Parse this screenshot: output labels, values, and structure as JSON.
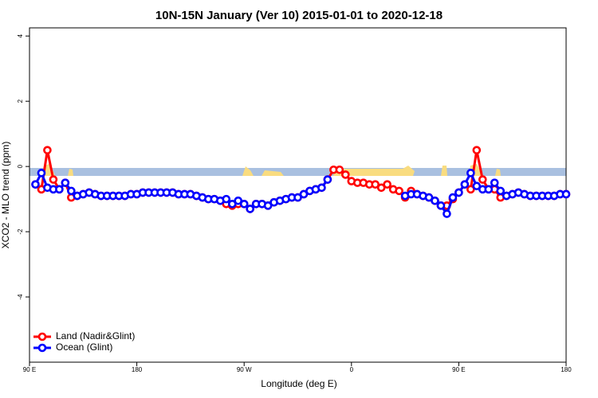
{
  "chart_data": {
    "type": "line",
    "title": "10N-15N January (Ver 10)   2015-01-01 to 2020-12-18",
    "xlabel": "Longitude (deg E)",
    "ylabel": "XCO2 - MLO trend (ppm)",
    "x": [
      95,
      100,
      105,
      110,
      115,
      120,
      125,
      130,
      135,
      140,
      145,
      150,
      155,
      160,
      165,
      170,
      175,
      180,
      185,
      190,
      195,
      200,
      205,
      210,
      215,
      220,
      225,
      230,
      235,
      240,
      245,
      250,
      255,
      260,
      265,
      270,
      275,
      280,
      285,
      290,
      295,
      300,
      305,
      310,
      315,
      320,
      325,
      330,
      335,
      340,
      345,
      350,
      355,
      360,
      365,
      370,
      375,
      380,
      385,
      390,
      395,
      400,
      405,
      410,
      415,
      420,
      425,
      430,
      435,
      440,
      445,
      450,
      455,
      460,
      465,
      470,
      475,
      480,
      485,
      490,
      495,
      500,
      505,
      510,
      515,
      520,
      525,
      530,
      535,
      540
    ],
    "series": [
      {
        "name": "Land (Nadir&Glint)",
        "color": "#ff0000",
        "values": [
          -0.55,
          -0.7,
          0.5,
          -0.4,
          -0.7,
          -0.5,
          -0.95,
          -0.9,
          -0.85,
          -0.8,
          -0.85,
          -0.9,
          -0.9,
          -0.9,
          -0.9,
          -0.9,
          -0.85,
          -0.85,
          -0.8,
          -0.8,
          -0.8,
          -0.8,
          -0.8,
          -0.8,
          -0.85,
          -0.85,
          -0.85,
          -0.9,
          -0.95,
          -1.0,
          -1.0,
          -1.05,
          -1.15,
          -1.2,
          -1.15,
          -1.15,
          -1.3,
          -1.15,
          -1.15,
          -1.2,
          -1.1,
          -1.05,
          -1.0,
          -0.95,
          -0.95,
          -0.85,
          -0.75,
          -0.7,
          -0.65,
          -0.4,
          -0.1,
          -0.1,
          -0.25,
          -0.45,
          -0.5,
          -0.5,
          -0.55,
          -0.55,
          -0.65,
          -0.55,
          -0.7,
          -0.75,
          -0.95,
          -0.75,
          -0.85,
          -0.9,
          -0.95,
          -1.05,
          -1.2,
          -1.2,
          -1.0,
          -0.8,
          -0.55,
          -0.7,
          0.5,
          -0.4,
          -0.7,
          -0.7,
          -0.95,
          -0.9,
          -0.85,
          -0.8,
          -0.85,
          -0.9,
          -0.9,
          -0.9,
          -0.9,
          -0.9,
          -0.85,
          -0.85
        ]
      },
      {
        "name": "Ocean (Glint)",
        "color": "#0000ff",
        "values": [
          -0.55,
          -0.2,
          -0.65,
          -0.7,
          -0.7,
          -0.5,
          -0.75,
          -0.9,
          -0.85,
          -0.8,
          -0.85,
          -0.9,
          -0.9,
          -0.9,
          -0.9,
          -0.9,
          -0.85,
          -0.85,
          -0.8,
          -0.8,
          -0.8,
          -0.8,
          -0.8,
          -0.8,
          -0.85,
          -0.85,
          -0.85,
          -0.9,
          -0.95,
          -1.0,
          -1.0,
          -1.05,
          -1.0,
          -1.15,
          -1.05,
          -1.15,
          -1.3,
          -1.15,
          -1.15,
          -1.2,
          -1.1,
          -1.05,
          -1.0,
          -0.95,
          -0.95,
          -0.85,
          -0.75,
          -0.7,
          -0.65,
          -0.4,
          null,
          null,
          null,
          null,
          null,
          null,
          null,
          null,
          null,
          null,
          null,
          null,
          -0.9,
          -0.85,
          -0.85,
          -0.9,
          -0.95,
          -1.05,
          -1.2,
          -1.45,
          -0.95,
          -0.8,
          -0.55,
          -0.2,
          -0.6,
          -0.7,
          -0.7,
          -0.5,
          -0.75,
          -0.9,
          -0.85,
          -0.8,
          -0.85,
          -0.9,
          -0.9,
          -0.9,
          -0.9,
          -0.9,
          -0.85,
          -0.85
        ]
      }
    ],
    "xlim": [
      90,
      540
    ],
    "xticks": [
      {
        "value": 90,
        "label": "90 E"
      },
      180,
      {
        "value": 270,
        "label": "90 W"
      },
      {
        "value": 360,
        "label": "0"
      },
      {
        "value": 450,
        "label": "90 E"
      },
      {
        "value": 540,
        "label": "180"
      }
    ],
    "ylim": [
      -6,
      4.25
    ],
    "yticks": [
      -4,
      -2,
      0,
      2,
      4
    ],
    "legend": "bottomleft"
  }
}
